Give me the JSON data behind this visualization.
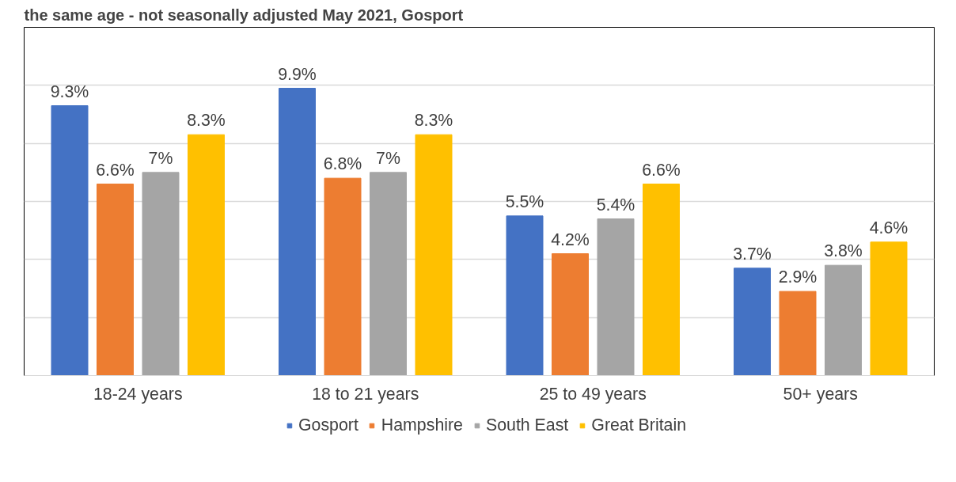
{
  "chart_data": {
    "type": "bar",
    "title": "the same age - not seasonally adjusted May 2021, Gosport",
    "categories": [
      "18-24 years",
      "18 to 21 years",
      "25 to 49 years",
      "50+ years"
    ],
    "series": [
      {
        "name": "Gosport",
        "color": "#4472c4",
        "values": [
          9.3,
          9.9,
          5.5,
          3.7
        ],
        "value_labels": [
          "9.3%",
          "9.9%",
          "5.5%",
          "3.7%"
        ]
      },
      {
        "name": "Hampshire",
        "color": "#ed7d31",
        "values": [
          6.6,
          6.8,
          4.2,
          2.9
        ],
        "value_labels": [
          "6.6%",
          "6.8%",
          "4.2%",
          "2.9%"
        ]
      },
      {
        "name": "South East",
        "color": "#a5a5a5",
        "values": [
          7,
          7,
          5.4,
          3.8
        ],
        "value_labels": [
          "7%",
          "7%",
          "5.4%",
          "3.8%"
        ]
      },
      {
        "name": "Great Britain",
        "color": "#ffc000",
        "values": [
          8.3,
          8.3,
          6.6,
          4.6
        ],
        "value_labels": [
          "8.3%",
          "8.3%",
          "6.6%",
          "4.6%"
        ]
      }
    ],
    "ylim": [
      0,
      12
    ],
    "yticks": [
      {
        "value": 0,
        "label": null
      },
      {
        "value": 2,
        "label": null
      },
      {
        "value": 4,
        "label": null
      },
      {
        "value": 6,
        "label": null
      },
      {
        "value": 8,
        "label": null
      },
      {
        "value": 10,
        "label": null
      },
      {
        "value": 12,
        "label": null
      }
    ],
    "tick_labels": "x",
    "grid": "y",
    "legend": "bottom"
  }
}
